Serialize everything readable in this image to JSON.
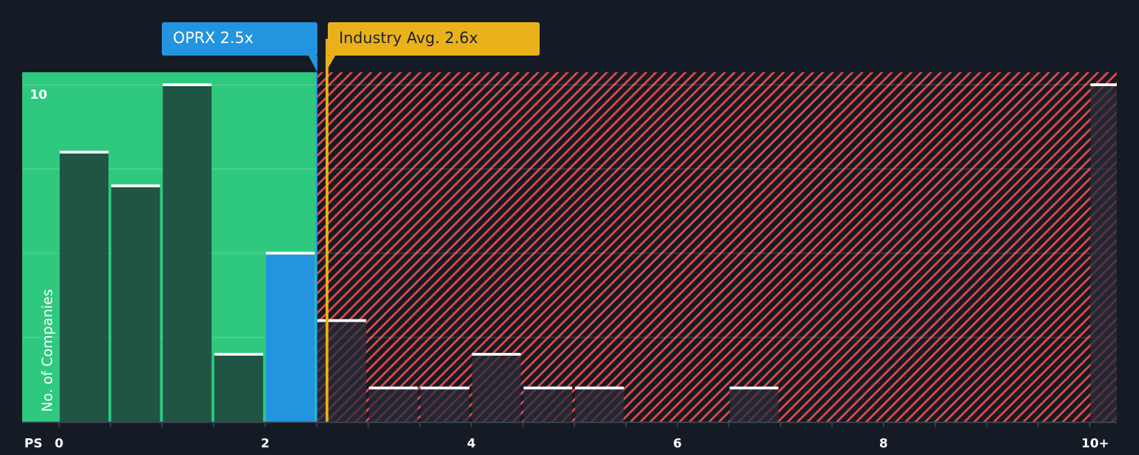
{
  "labels": {
    "company": "OPRX 2.5x",
    "industry": "Industry Avg. 2.6x",
    "y_axis": "No. of Companies",
    "x_axis_prefix": "PS",
    "y_tick_top": "10"
  },
  "colors": {
    "background": "#151b24",
    "fair_zone": "#2ec97e",
    "over_zone_stripe": "#e04848",
    "company": "#2394df",
    "industry": "#eab11a",
    "bar_dark": "#1f4a3f",
    "bar_cap": "#ffffff"
  },
  "chart_data": {
    "type": "bar",
    "title": "",
    "xlabel": "PS",
    "ylabel": "No. of Companies",
    "bins": [
      "0-0.5",
      "0.5-1",
      "1-1.5",
      "1.5-2",
      "2-2.5",
      "2.5-3",
      "3-3.5",
      "3.5-4",
      "4-4.5",
      "4.5-5",
      "5-5.5",
      "5.5-6",
      "6-6.5",
      "6.5-7",
      "7-7.5",
      "7.5-8",
      "8-8.5",
      "8.5-9",
      "9-9.5",
      "9.5-10",
      "10+"
    ],
    "values": [
      8,
      7,
      10,
      2,
      5,
      3,
      1,
      1,
      2,
      1,
      1,
      0,
      0,
      1,
      0,
      0,
      0,
      0,
      0,
      0,
      10
    ],
    "highlight_bin": "2-2.5",
    "x_ticks": [
      "0",
      "2",
      "4",
      "6",
      "8",
      "10+"
    ],
    "y_ticks": [
      "10"
    ],
    "ylim": [
      0,
      10.5
    ],
    "markers": [
      {
        "name": "OPRX",
        "value": 2.5,
        "label": "OPRX 2.5x"
      },
      {
        "name": "Industry Avg.",
        "value": 2.6,
        "label": "Industry Avg. 2.6x"
      }
    ],
    "gridlines": [
      2.5,
      5,
      7.5,
      10
    ],
    "legend": "none"
  }
}
